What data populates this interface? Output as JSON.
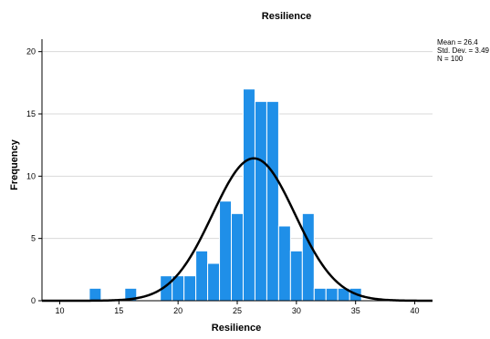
{
  "chart_data": {
    "type": "bar",
    "title": "Resilience",
    "xlabel": "Resilience",
    "ylabel": "Frequency",
    "xlim": [
      8.5,
      41.5
    ],
    "ylim": [
      0,
      21
    ],
    "x_ticks": [
      10,
      15,
      20,
      25,
      30,
      35,
      40
    ],
    "y_ticks": [
      0,
      5,
      10,
      15,
      20
    ],
    "bin_width": 1,
    "bins": [
      {
        "start": 12.5,
        "end": 13.5,
        "count": 1
      },
      {
        "start": 15.5,
        "end": 16.5,
        "count": 1
      },
      {
        "start": 18.5,
        "end": 19.5,
        "count": 2
      },
      {
        "start": 19.5,
        "end": 20.5,
        "count": 2
      },
      {
        "start": 20.5,
        "end": 21.5,
        "count": 2
      },
      {
        "start": 21.5,
        "end": 22.5,
        "count": 4
      },
      {
        "start": 22.5,
        "end": 23.5,
        "count": 3
      },
      {
        "start": 23.5,
        "end": 24.5,
        "count": 8
      },
      {
        "start": 24.5,
        "end": 25.5,
        "count": 7
      },
      {
        "start": 25.5,
        "end": 26.5,
        "count": 17
      },
      {
        "start": 26.5,
        "end": 27.5,
        "count": 16
      },
      {
        "start": 27.5,
        "end": 28.5,
        "count": 16
      },
      {
        "start": 28.5,
        "end": 29.5,
        "count": 6
      },
      {
        "start": 29.5,
        "end": 30.5,
        "count": 4
      },
      {
        "start": 30.5,
        "end": 31.5,
        "count": 7
      },
      {
        "start": 31.5,
        "end": 32.5,
        "count": 1
      },
      {
        "start": 32.5,
        "end": 33.5,
        "count": 1
      },
      {
        "start": 33.5,
        "end": 34.5,
        "count": 1
      },
      {
        "start": 34.5,
        "end": 35.5,
        "count": 1
      }
    ],
    "normal_curve": {
      "mean": 26.4,
      "std_dev": 3.49,
      "n": 100
    },
    "stats_text": {
      "mean": "Mean = 26.4",
      "std_dev": "Std. Dev. = 3.49",
      "n": "N = 100"
    },
    "grid": "horizontal",
    "legend": "top-right",
    "colors": {
      "bar_fill": "#1f8fe8",
      "bar_edge": "#ffffff",
      "curve": "#000000",
      "grid": "#d9d9d9",
      "axis": "#000000",
      "text": "#000000"
    }
  }
}
